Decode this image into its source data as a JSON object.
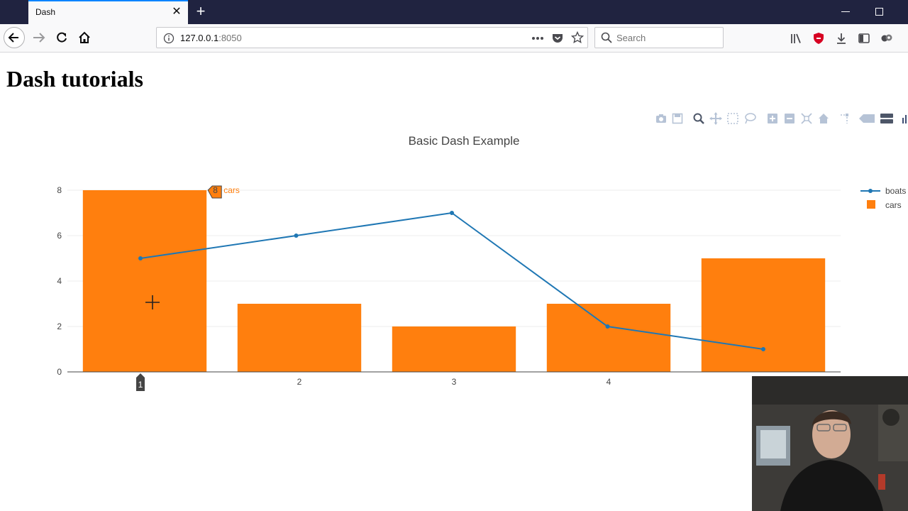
{
  "browser": {
    "tab_title": "Dash",
    "url_host": "127.0.0.1",
    "url_port": ":8050",
    "search_placeholder": "Search"
  },
  "page": {
    "heading": "Dash tutorials"
  },
  "chart_data": {
    "type": "bar",
    "title": "Basic Dash Example",
    "x": [
      1,
      2,
      3,
      4,
      5
    ],
    "x_tick_labels": [
      "",
      "2",
      "3",
      "4",
      ""
    ],
    "ylim": [
      0,
      8
    ],
    "y_ticks": [
      0,
      2,
      4,
      6,
      8
    ],
    "grid": true,
    "legend_placement": "top-right",
    "series": [
      {
        "name": "boats",
        "type": "line",
        "color": "#1f77b4",
        "values": [
          5,
          6,
          7,
          2,
          1
        ]
      },
      {
        "name": "cars",
        "type": "bar",
        "color": "#ff7f0e",
        "values": [
          8,
          3,
          2,
          3,
          5
        ]
      }
    ],
    "hover": {
      "value": "8",
      "series": "cars",
      "x_label": "1"
    }
  },
  "colors": {
    "tab_bar": "#202340",
    "accent": "#0a84ff",
    "bar": "#ff7f0e",
    "line": "#1f77b4"
  }
}
